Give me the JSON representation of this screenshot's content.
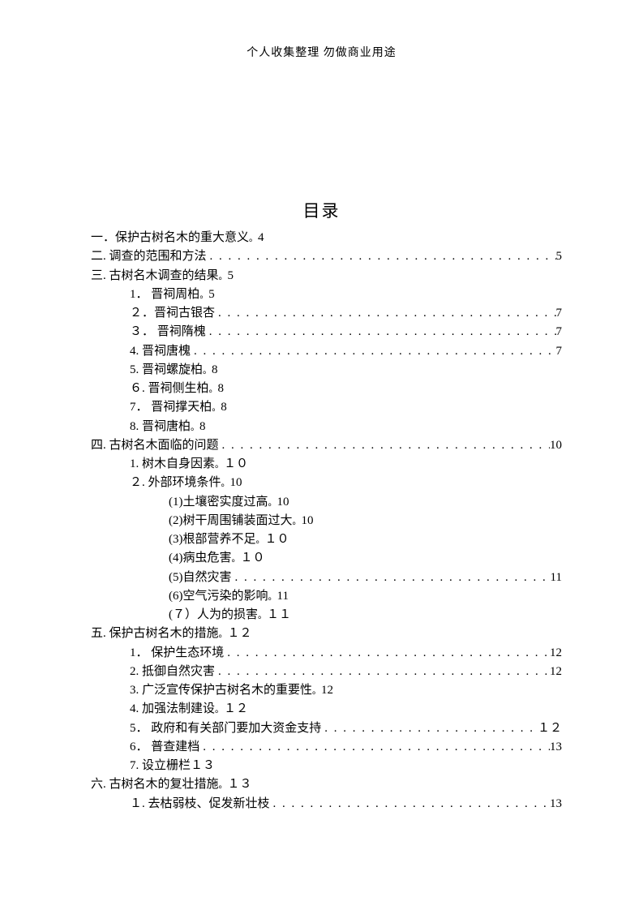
{
  "header": "个人收集整理  勿做商业用途",
  "title": "目录",
  "entries": [
    {
      "level": 0,
      "label": "一．保护古树名木的重大意义",
      "page": "4",
      "style": "inline-marker"
    },
    {
      "level": 0,
      "label": "二. 调查的范围和方法 ",
      "page": " 5",
      "style": "leader"
    },
    {
      "level": 0,
      "label": "三. 古树名木调查的结果",
      "page": "5",
      "style": "inline-marker"
    },
    {
      "level": 1,
      "label": "1． 晋祠周柏",
      "page": "5",
      "style": "inline-marker"
    },
    {
      "level": 1,
      "label": "２．晋祠古银杏 ",
      "page": "7",
      "style": "leader"
    },
    {
      "level": 1,
      "label": "３． 晋祠隋槐 ",
      "page": " 7",
      "style": "leader"
    },
    {
      "level": 1,
      "label": "4. 晋祠唐槐 ",
      "page": " 7",
      "style": "leader"
    },
    {
      "level": 1,
      "label": "5. 晋祠螺旋柏",
      "page": " 8",
      "style": "inline-marker"
    },
    {
      "level": 1,
      "label": "６. 晋祠侧生柏",
      "page": " 8",
      "style": "inline-marker"
    },
    {
      "level": 1,
      "label": "7． 晋祠撑天柏",
      "page": "8",
      "style": "inline-marker"
    },
    {
      "level": 1,
      "label": "8. 晋祠唐柏",
      "page": "8",
      "style": "inline-marker"
    },
    {
      "level": 0,
      "label": "四. 古树名木面临的问题 ",
      "page": " 10",
      "style": "leader"
    },
    {
      "level": 1,
      "label": "1. 树木自身因素",
      "page": "１０",
      "style": "inline-marker"
    },
    {
      "level": 1,
      "label": "２. 外部环境条件",
      "page": "10",
      "style": "inline-marker"
    },
    {
      "level": 2,
      "label": "(1)土壤密实度过高",
      "page": "10",
      "style": "inline-marker"
    },
    {
      "level": 2,
      "label": "(2)树干周围铺装面过大",
      "page": "10",
      "style": "inline-marker"
    },
    {
      "level": 2,
      "label": "(3)根部营养不足",
      "page": "１０",
      "style": "inline-marker"
    },
    {
      "level": 2,
      "label": "(4)病虫危害",
      "page": "１０",
      "style": "inline-marker"
    },
    {
      "level": 2,
      "label": "(5)自然灾害 ",
      "page": "11",
      "style": "leader"
    },
    {
      "level": 2,
      "label": "(6)空气污染的影响",
      "page": "11",
      "style": "inline-marker"
    },
    {
      "level": 2,
      "label": "(７）人为的损害",
      "page": "１１",
      "style": "inline-marker"
    },
    {
      "level": 0,
      "label": "五. 保护古树名木的措施",
      "page": "１２",
      "style": "inline-marker"
    },
    {
      "level": 1,
      "label": "1． 保护生态环境 ",
      "page": " 12",
      "style": "leader"
    },
    {
      "level": 1,
      "label": "2. 抵御自然灾害 ",
      "page": "12",
      "style": "leader"
    },
    {
      "level": 1,
      "label": "3. 广泛宣传保护古树名木的重要性",
      "page": "12",
      "style": "inline-marker"
    },
    {
      "level": 1,
      "label": "4. 加强法制建设",
      "page": "１２",
      "style": "inline-marker"
    },
    {
      "level": 1,
      "label": "5． 政府和有关部门要加大资金支持 ",
      "page": "１２",
      "style": "leader"
    },
    {
      "level": 1,
      "label": "6． 普查建档 ",
      "page": " 13",
      "style": "leader"
    },
    {
      "level": 1,
      "label": "7. 设立栅栏",
      "page": "１３",
      "style": "inline-marker-nomark"
    },
    {
      "level": 0,
      "label": "六. 古树名木的复壮措施 ",
      "page": "１３",
      "style": "inline-marker"
    },
    {
      "level": 1,
      "label": "１. 去枯弱枝、促发新壮枝 ",
      "page": " 13",
      "style": "leader"
    }
  ],
  "marker_char": "。",
  "colors": {
    "text": "#000000",
    "background": "#ffffff"
  },
  "fonts": {
    "body_size": 15,
    "title_size": 21,
    "header_size": 14
  }
}
